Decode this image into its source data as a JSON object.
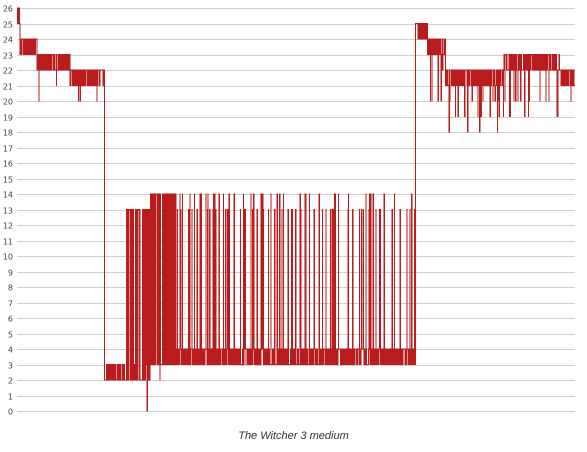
{
  "chart_data": {
    "type": "line",
    "title": "The Witcher 3 medium",
    "xlabel": "",
    "ylabel": "",
    "ylim": [
      0,
      26
    ],
    "yticks": [
      0,
      1,
      2,
      3,
      4,
      5,
      6,
      7,
      8,
      9,
      10,
      11,
      12,
      13,
      14,
      15,
      16,
      17,
      18,
      19,
      20,
      21,
      22,
      23,
      24,
      25,
      26
    ],
    "grid": true,
    "legend": "none",
    "line_color": "#b81c1c",
    "x_sample_count": 560,
    "segments": [
      {
        "x_start": 0,
        "x_end": 3,
        "values": [
          26,
          25,
          24
        ]
      },
      {
        "x_start": 3,
        "x_end": 20,
        "values": [
          24,
          23,
          24,
          23,
          20,
          24
        ]
      },
      {
        "x_start": 20,
        "x_end": 53,
        "values": [
          23,
          22,
          23,
          20,
          22,
          21
        ]
      },
      {
        "x_start": 53,
        "x_end": 88,
        "values": [
          22,
          21,
          22,
          21,
          20,
          21
        ]
      },
      {
        "x_start": 88,
        "x_end": 90,
        "values": [
          21,
          2
        ]
      },
      {
        "x_start": 90,
        "x_end": 110,
        "values": [
          2,
          3,
          2
        ]
      },
      {
        "x_start": 110,
        "x_end": 134,
        "values": [
          2,
          13,
          2,
          13,
          3,
          0,
          6,
          3
        ]
      },
      {
        "x_start": 134,
        "x_end": 160,
        "values": [
          3,
          14,
          3,
          13,
          3,
          2,
          13,
          14,
          4
        ]
      },
      {
        "x_start": 160,
        "x_end": 400,
        "values": [
          3,
          4,
          13,
          14
        ]
      },
      {
        "x_start": 400,
        "x_end": 402,
        "values": [
          3,
          25
        ]
      },
      {
        "x_start": 402,
        "x_end": 412,
        "values": [
          25,
          24
        ]
      },
      {
        "x_start": 412,
        "x_end": 430,
        "values": [
          24,
          23,
          22,
          21,
          20
        ]
      },
      {
        "x_start": 430,
        "x_end": 488,
        "values": [
          21,
          22,
          20,
          19,
          18,
          21,
          22
        ]
      },
      {
        "x_start": 488,
        "x_end": 545,
        "values": [
          22,
          23,
          22,
          20,
          19
        ]
      },
      {
        "x_start": 545,
        "x_end": 560,
        "values": [
          22,
          21,
          20,
          21
        ]
      }
    ]
  }
}
